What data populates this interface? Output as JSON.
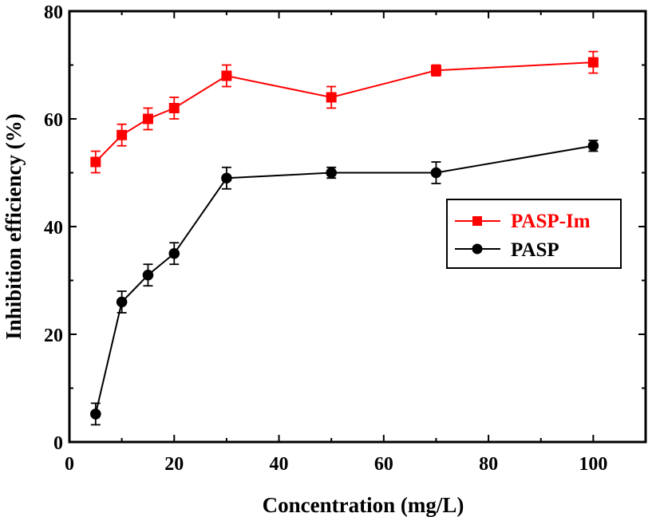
{
  "chart_data": {
    "type": "line",
    "xlabel": "Concentration (mg/L)",
    "ylabel": "Inhibition efficiency (%)",
    "xlim": [
      0,
      110
    ],
    "ylim": [
      0,
      80
    ],
    "x_ticks": [
      0,
      20,
      40,
      60,
      80,
      100
    ],
    "y_ticks": [
      0,
      20,
      40,
      60,
      80
    ],
    "grid": false,
    "legend_position": "center-right",
    "x": [
      5,
      10,
      15,
      20,
      30,
      50,
      70,
      100
    ],
    "series": [
      {
        "name": "PASP-Im",
        "color": "#ff0000",
        "marker": "square",
        "values": [
          52,
          57,
          60,
          62,
          68,
          64,
          69,
          70.5
        ],
        "errors": [
          2,
          2,
          2,
          2,
          2,
          2,
          1,
          2
        ]
      },
      {
        "name": "PASP",
        "color": "#000000",
        "marker": "circle",
        "values": [
          5.2,
          26,
          31,
          35,
          49,
          50,
          50,
          55
        ],
        "errors": [
          2,
          2,
          2,
          2,
          2,
          1,
          2,
          1
        ]
      }
    ]
  }
}
